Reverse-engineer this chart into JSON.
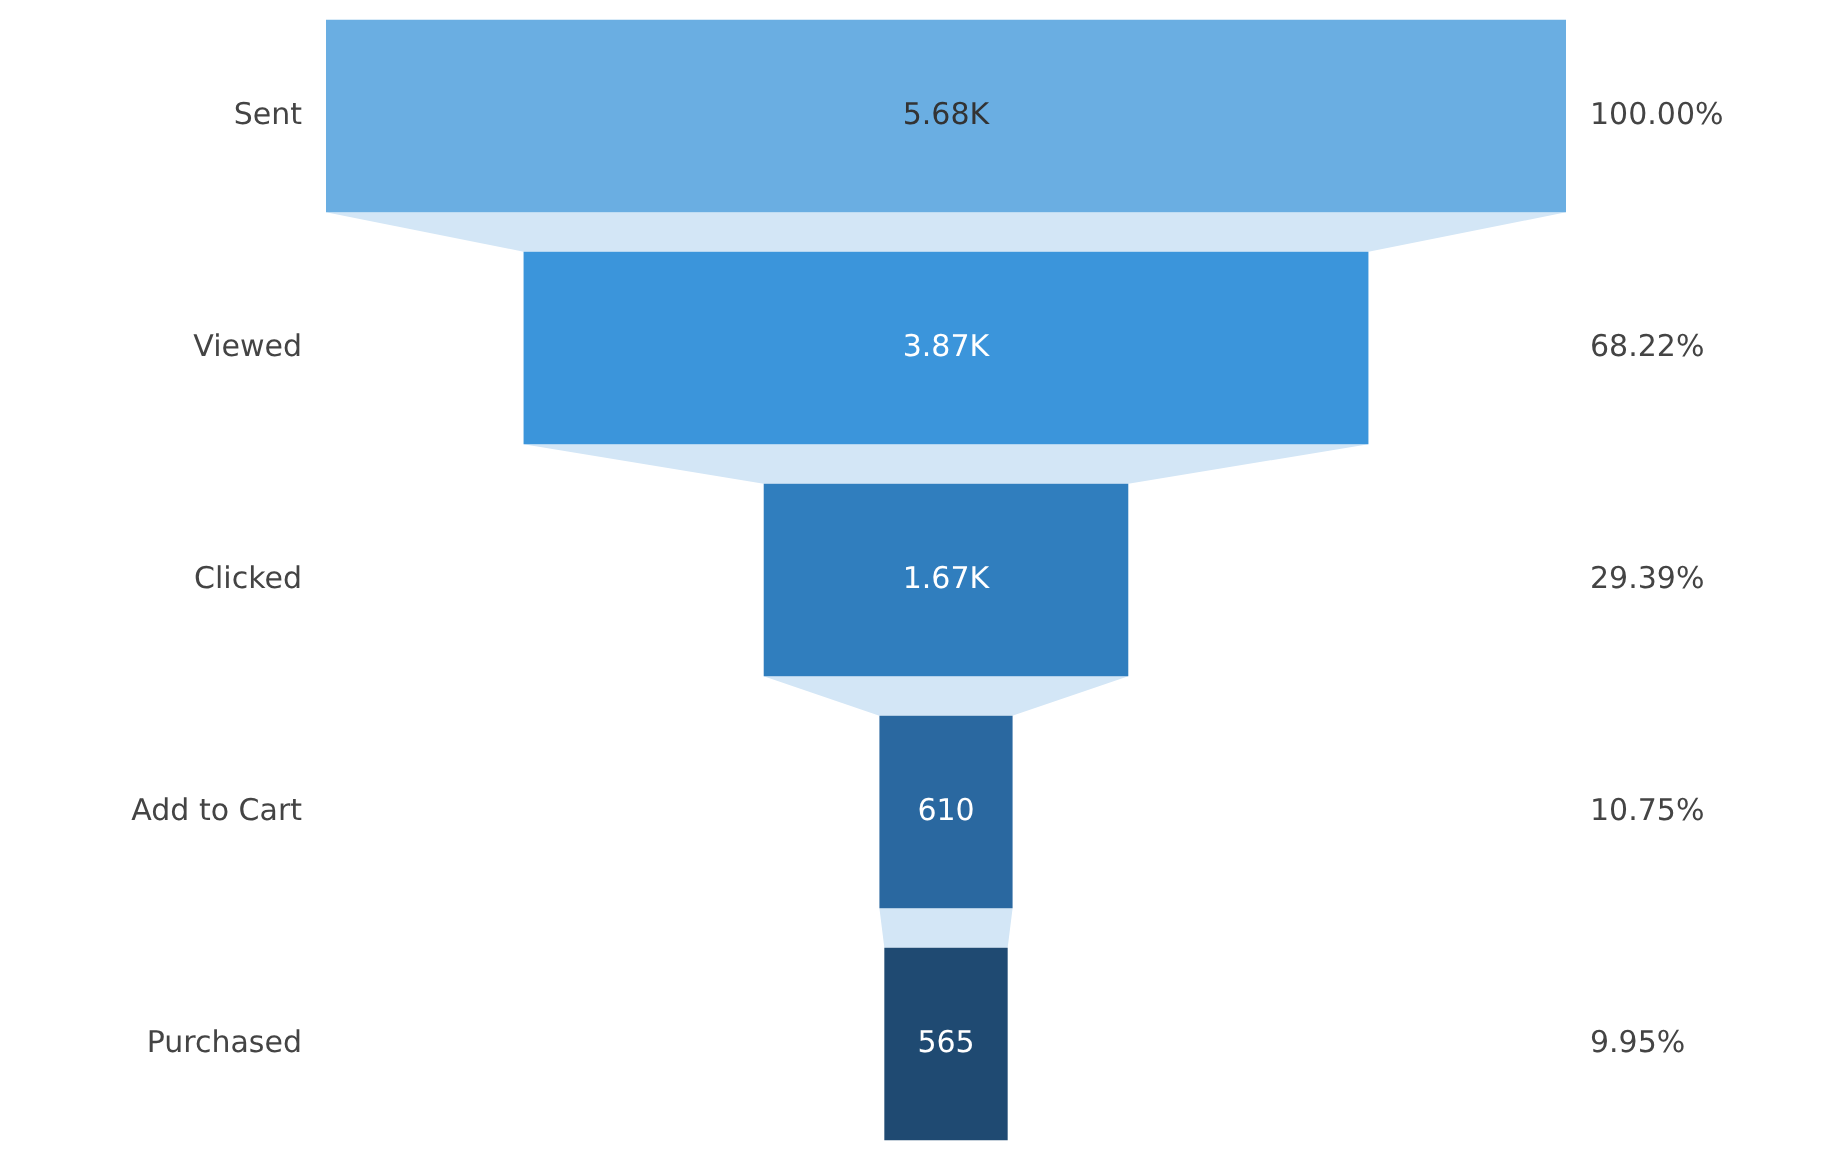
{
  "chart_data": {
    "type": "other",
    "categories": [
      "Sent",
      "Viewed",
      "Clicked",
      "Add to Cart",
      "Purchased"
    ],
    "values": [
      5680,
      3870,
      1670,
      610,
      565
    ],
    "value_labels": [
      "5.68K",
      "3.87K",
      "1.67K",
      "610",
      "565"
    ],
    "colors": [
      "#6aaee2",
      "#3b95db",
      "#307ebe",
      "#2a68a0",
      "#1f4a72"
    ],
    "annotations": [
      "100.00%",
      "68.22%",
      "29.39%",
      "10.75%",
      "9.95%"
    ]
  }
}
